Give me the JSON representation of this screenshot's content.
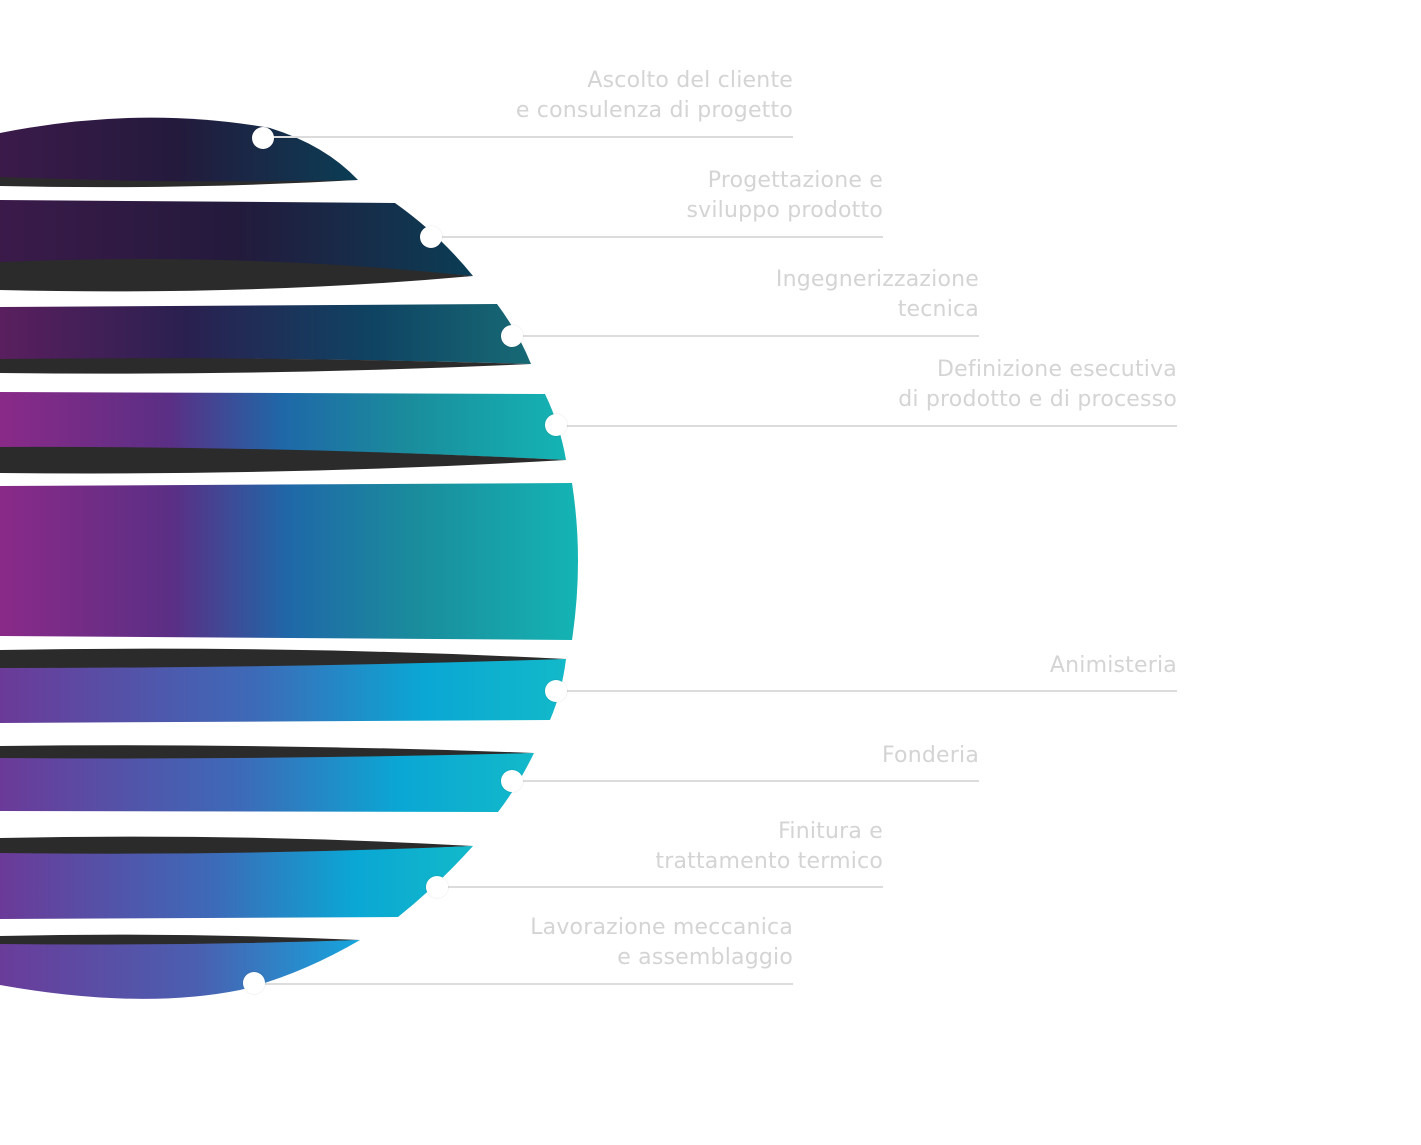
{
  "steps": [
    {
      "id": "ascolto",
      "lines": [
        "Ascolto del cliente",
        "e consulenza di progetto"
      ]
    },
    {
      "id": "progettazione",
      "lines": [
        "Progettazione e",
        "sviluppo prodotto"
      ]
    },
    {
      "id": "ingegnerizzazione",
      "lines": [
        "Ingegnerizzazione",
        "tecnica"
      ]
    },
    {
      "id": "definizione",
      "lines": [
        "Definizione esecutiva",
        "di prodotto e di processo"
      ]
    },
    {
      "id": "animisteria",
      "lines": [
        "Animisteria"
      ]
    },
    {
      "id": "fonderia",
      "lines": [
        "Fonderia"
      ]
    },
    {
      "id": "finitura",
      "lines": [
        "Finitura e",
        "trattamento termico"
      ]
    },
    {
      "id": "lavorazione",
      "lines": [
        "Lavorazione meccanica",
        "e assemblaggio"
      ]
    }
  ],
  "colors": {
    "label_text": "#d4d4d4",
    "leader_line": "#dcdcdc",
    "shadow_band": "#2b2b2b",
    "gradient_top_left": "#3a1a48",
    "gradient_top_right": "#0c3c55",
    "gradient_mid_left": "#8a2a8a",
    "gradient_mid_center": "#1f6aa8",
    "gradient_mid_right": "#16b5b5",
    "gradient_bottom_left": "#6a3a9a",
    "gradient_bottom_right": "#14a9dd"
  }
}
